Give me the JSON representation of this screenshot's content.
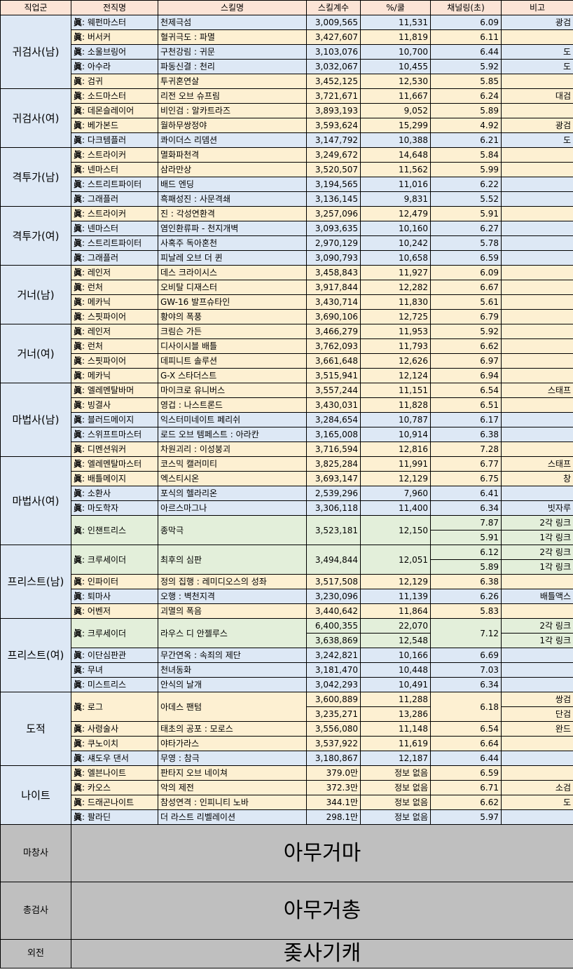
{
  "headers": [
    "직업군",
    "전직명",
    "스킬명",
    "스킬계수",
    "%/쿨",
    "채널링(초)",
    "비고"
  ],
  "zhen": "眞",
  "rows": [
    {
      "g": "귀검사(남)",
      "gs": 5,
      "c": "b",
      "job": ": 웨펀마스터",
      "skill": "천제극섬",
      "coef": "3,009,565",
      "pct": "11,531",
      "ch": "6.09",
      "note": "광검"
    },
    {
      "c": "y",
      "job": ": 버서커",
      "skill": "혈귀극도 : 파멸",
      "coef": "3,427,607",
      "pct": "11,819",
      "ch": "6.11",
      "note": ""
    },
    {
      "c": "b",
      "job": ": 소울브링어",
      "skill": "구천강림 : 귀문",
      "coef": "3,103,076",
      "pct": "10,700",
      "ch": "6.44",
      "note": "도"
    },
    {
      "c": "b",
      "job": ": 아수라",
      "skill": "파동신결 : 천리",
      "coef": "3,032,067",
      "pct": "10,455",
      "ch": "5.92",
      "note": "도"
    },
    {
      "c": "y",
      "job": ": 검귀",
      "skill": "투귀혼연살",
      "coef": "3,452,125",
      "pct": "12,530",
      "ch": "5.85",
      "note": ""
    },
    {
      "g": "귀검사(여)",
      "gs": 4,
      "c": "y",
      "job": ": 소드마스터",
      "skill": "리전 오브 슈프림",
      "coef": "3,721,671",
      "pct": "11,667",
      "ch": "6.24",
      "note": "대검"
    },
    {
      "c": "y",
      "job": ": 데몬슬레이어",
      "skill": "비인검 : 알카트라즈",
      "coef": "3,893,193",
      "pct": "9,052",
      "ch": "5.89",
      "note": ""
    },
    {
      "c": "y",
      "job": ": 베가본드",
      "skill": "월하무쌍정야",
      "coef": "3,593,624",
      "pct": "15,299",
      "ch": "4.92",
      "note": "광검"
    },
    {
      "c": "b",
      "job": ": 다크템플러",
      "skill": "콰이더스 리뎀션",
      "coef": "3,147,792",
      "pct": "10,388",
      "ch": "6.21",
      "note": "도"
    },
    {
      "g": "격투가(남)",
      "gs": 4,
      "c": "y",
      "job": ": 스트라이커",
      "skill": "멸화파천격",
      "coef": "3,249,672",
      "pct": "14,648",
      "ch": "5.84",
      "note": ""
    },
    {
      "c": "y",
      "job": ": 넨마스터",
      "skill": "삼라만상",
      "coef": "3,520,507",
      "pct": "11,562",
      "ch": "5.99",
      "note": ""
    },
    {
      "c": "b",
      "job": ": 스트리트파이터",
      "skill": "배드 엔딩",
      "coef": "3,194,565",
      "pct": "11,016",
      "ch": "6.22",
      "note": ""
    },
    {
      "c": "b",
      "job": ": 그래플러",
      "skill": "흑패성진 : 사문격쇄",
      "coef": "3,136,145",
      "pct": "9,831",
      "ch": "5.52",
      "note": ""
    },
    {
      "g": "격투가(여)",
      "gs": 4,
      "c": "y",
      "job": ": 스트라이커",
      "skill": "진 : 각성연환격",
      "coef": "3,257,096",
      "pct": "12,479",
      "ch": "5.91",
      "note": ""
    },
    {
      "c": "b",
      "job": ": 넨마스터",
      "skill": "염인환류파 - 천지개벽",
      "coef": "3,093,635",
      "pct": "10,160",
      "ch": "6.27",
      "note": ""
    },
    {
      "c": "b",
      "job": ": 스트리트파이터",
      "skill": "사혹주 독아혼천",
      "coef": "2,970,129",
      "pct": "10,242",
      "ch": "5.78",
      "note": ""
    },
    {
      "c": "b",
      "job": ": 그래플러",
      "skill": "피날레 오브 더 퀸",
      "coef": "3,090,793",
      "pct": "10,658",
      "ch": "6.59",
      "note": ""
    },
    {
      "g": "거너(남)",
      "gs": 4,
      "c": "y",
      "job": ": 레인저",
      "skill": "데스 크라이시스",
      "coef": "3,458,843",
      "pct": "11,927",
      "ch": "6.09",
      "note": ""
    },
    {
      "c": "y",
      "job": ": 런처",
      "skill": "오비탈 디재스터",
      "coef": "3,917,844",
      "pct": "12,282",
      "ch": "6.67",
      "note": ""
    },
    {
      "c": "y",
      "job": ": 메카닉",
      "skill": "GW-16 발프슈타인",
      "coef": "3,430,714",
      "pct": "11,830",
      "ch": "5.61",
      "note": ""
    },
    {
      "c": "y",
      "job": ": 스핏파이어",
      "skill": "황야의 폭풍",
      "coef": "3,690,106",
      "pct": "12,725",
      "ch": "6.79",
      "note": ""
    },
    {
      "g": "거너(여)",
      "gs": 4,
      "c": "y",
      "job": ": 레인저",
      "skill": "크림슨 가든",
      "coef": "3,466,279",
      "pct": "11,953",
      "ch": "5.92",
      "note": ""
    },
    {
      "c": "y",
      "job": ": 런처",
      "skill": "디사이시블 배틀",
      "coef": "3,762,093",
      "pct": "11,793",
      "ch": "6.62",
      "note": ""
    },
    {
      "c": "y",
      "job": ": 스핏파이어",
      "skill": "데피니트 솔루션",
      "coef": "3,661,648",
      "pct": "12,626",
      "ch": "6.97",
      "note": ""
    },
    {
      "c": "y",
      "job": ": 메카닉",
      "skill": "G-X 스타더스트",
      "coef": "3,515,941",
      "pct": "12,124",
      "ch": "6.94",
      "note": ""
    },
    {
      "g": "마법사(남)",
      "gs": 5,
      "c": "y",
      "job": ": 엘레멘탈바머",
      "skill": "마이크로 유니버스",
      "coef": "3,557,244",
      "pct": "11,151",
      "ch": "6.54",
      "note": "스태프"
    },
    {
      "c": "y",
      "job": ": 빙결사",
      "skill": "영겁 : 나스트론드",
      "coef": "3,430,031",
      "pct": "11,828",
      "ch": "6.51",
      "note": ""
    },
    {
      "c": "b",
      "job": ": 블러드메이지",
      "skill": "익스터미네이트 페리쉬",
      "coef": "3,284,654",
      "pct": "10,787",
      "ch": "6.17",
      "note": ""
    },
    {
      "c": "b",
      "job": ": 스위프트마스터",
      "skill": "로드 오브 템페스트 : 아라칸",
      "coef": "3,165,008",
      "pct": "10,914",
      "ch": "6.38",
      "note": ""
    },
    {
      "c": "y",
      "job": ": 디멘션워커",
      "skill": "차원괴리 : 이성붕괴",
      "coef": "3,716,594",
      "pct": "12,816",
      "ch": "7.28",
      "note": ""
    }
  ],
  "mage_f": {
    "group": "마법사(여)",
    "rows": [
      {
        "c": "y",
        "job": ": 엘레멘탈마스터",
        "skill": "코스믹 캘러미티",
        "coef": "3,825,284",
        "pct": "11,991",
        "ch": "6.77",
        "note": "스태프"
      },
      {
        "c": "y",
        "job": ": 배틀메이지",
        "skill": "엑스티시온",
        "coef": "3,693,147",
        "pct": "12,129",
        "ch": "6.75",
        "note": "창"
      },
      {
        "c": "b",
        "job": ": 소환사",
        "skill": "포식의 헬라리온",
        "coef": "2,539,296",
        "pct": "7,960",
        "ch": "6.41",
        "note": ""
      },
      {
        "c": "b",
        "job": ": 마도학자",
        "skill": "아르스마그나",
        "coef": "3,306,118",
        "pct": "11,400",
        "ch": "6.34",
        "note": "빗자루"
      }
    ],
    "enchant": {
      "job": ": 인챈트리스",
      "skill": "종막극",
      "coef": "3,523,181",
      "pct": "12,150",
      "ch1": "7.87",
      "note1": "2각 링크",
      "ch2": "5.91",
      "note2": "1각 링크"
    }
  },
  "priest_m": {
    "group": "프리스트(남)",
    "crusader": {
      "job": ": 크루세이더",
      "skill": "최후의 심판",
      "coef": "3,494,844",
      "pct": "12,051",
      "ch1": "6.12",
      "note1": "2각 링크",
      "ch2": "5.89",
      "note2": "1각 링크"
    },
    "rows": [
      {
        "c": "y",
        "job": ": 인파이터",
        "skill": "정의 집행 : 레미디오스의 성좌",
        "coef": "3,517,508",
        "pct": "12,129",
        "ch": "6.38",
        "note": ""
      },
      {
        "c": "b",
        "job": ": 퇴마사",
        "skill": "오행 : 벽천지격",
        "coef": "3,230,096",
        "pct": "11,139",
        "ch": "6.26",
        "note": "배틀액스"
      },
      {
        "c": "y",
        "job": ": 어벤저",
        "skill": "괴멸의 폭음",
        "coef": "3,440,642",
        "pct": "11,864",
        "ch": "5.83",
        "note": ""
      }
    ]
  },
  "priest_f": {
    "group": "프리스트(여)",
    "crusader": {
      "job": ": 크루세이더",
      "skill": "라우스 디 안젤루스",
      "coef1": "6,400,355",
      "pct1": "22,070",
      "coef2": "3,638,869",
      "pct2": "12,548",
      "ch": "7.12",
      "note1": "2각 링크",
      "note2": "1각 링크"
    },
    "rows": [
      {
        "c": "b",
        "job": ": 이단심판관",
        "skill": "무간연옥 : 속죄의 제단",
        "coef": "3,242,821",
        "pct": "10,166",
        "ch": "6.69",
        "note": ""
      },
      {
        "c": "b",
        "job": ": 무녀",
        "skill": "천녀동화",
        "coef": "3,181,470",
        "pct": "10,448",
        "ch": "7.03",
        "note": ""
      },
      {
        "c": "b",
        "job": ": 미스트리스",
        "skill": "안식의 날개",
        "coef": "3,042,293",
        "pct": "10,491",
        "ch": "6.34",
        "note": ""
      }
    ]
  },
  "thief": {
    "group": "도적",
    "rogue": {
      "job": ": 로그",
      "skill": "아데스 팬텀",
      "coef1": "3,600,889",
      "pct1": "11,288",
      "coef2": "3,235,271",
      "pct2": "13,286",
      "ch": "6.18",
      "note1": "쌍검",
      "note2": "단검"
    },
    "rows": [
      {
        "c": "y",
        "job": ": 사령술사",
        "skill": "태초의 공포 : 모로스",
        "coef": "3,556,080",
        "pct": "11,148",
        "ch": "6.54",
        "note": "완드"
      },
      {
        "c": "y",
        "job": ": 쿠노이치",
        "skill": "야타가라스",
        "coef": "3,537,922",
        "pct": "11,619",
        "ch": "6.64",
        "note": ""
      },
      {
        "c": "b",
        "job": ": 섀도우 댄서",
        "skill": "무영 : 참극",
        "coef": "3,180,867",
        "pct": "12,187",
        "ch": "6.44",
        "note": ""
      }
    ]
  },
  "knight": {
    "group": "나이트",
    "rows": [
      {
        "c": "y",
        "job": ": 엘븐나이트",
        "skill": "판타지 오브 네이쳐",
        "coef": "379.0만",
        "pct": "정보 없음",
        "ch": "6.59",
        "note": ""
      },
      {
        "c": "y",
        "job": ": 카오스",
        "skill": "악의 제전",
        "coef": "372.3만",
        "pct": "정보 없음",
        "ch": "6.71",
        "note": "소검"
      },
      {
        "c": "y",
        "job": ": 드래곤나이트",
        "skill": "참성연격 : 인피니티 노바",
        "coef": "344.1만",
        "pct": "정보 없음",
        "ch": "6.62",
        "note": "도"
      },
      {
        "c": "b",
        "job": ": 팔라딘",
        "skill": "더 라스트 리벨레이션",
        "coef": "298.1만",
        "pct": "정보 없음",
        "ch": "5.97",
        "note": ""
      }
    ]
  },
  "bottom": [
    {
      "label": "마창사",
      "text": "아무거마",
      "h": 82
    },
    {
      "label": "총검사",
      "text": "아무거총",
      "h": 82
    },
    {
      "label": "외전",
      "text": "좆사기캐",
      "h": 41
    }
  ]
}
